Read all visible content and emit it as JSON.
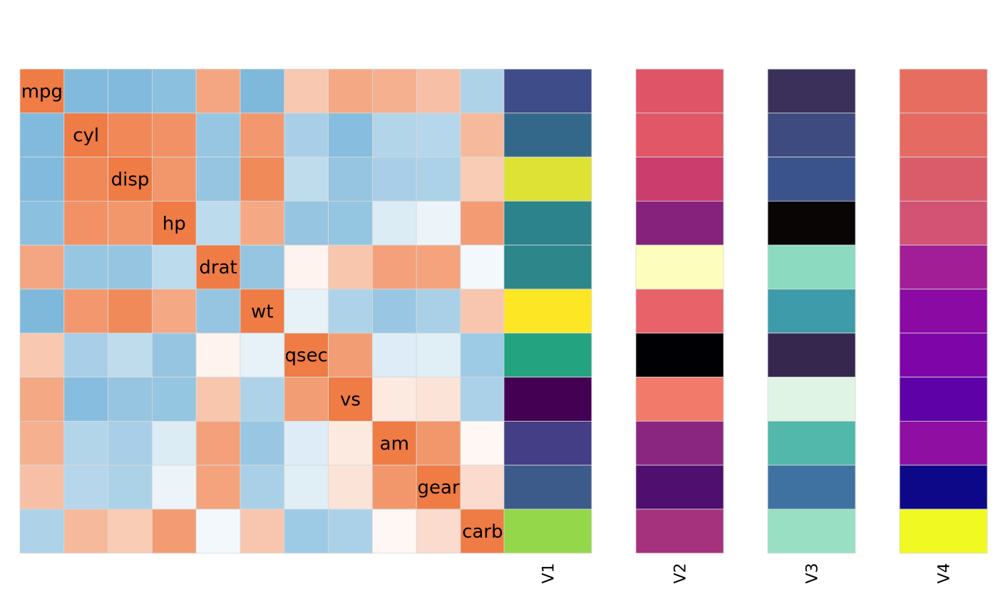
{
  "chart_data": [
    {
      "type": "heatmap",
      "name": "correlation",
      "labels": [
        "mpg",
        "cyl",
        "disp",
        "hp",
        "drat",
        "wt",
        "qsec",
        "vs",
        "am",
        "gear",
        "carb"
      ],
      "matrix": [
        [
          1.0,
          -0.85,
          -0.85,
          -0.78,
          0.68,
          -0.87,
          0.42,
          0.66,
          0.6,
          0.48,
          -0.55
        ],
        [
          -0.85,
          1.0,
          0.9,
          0.83,
          -0.7,
          0.78,
          -0.59,
          -0.81,
          -0.52,
          -0.49,
          0.53
        ],
        [
          -0.85,
          0.9,
          1.0,
          0.79,
          -0.71,
          0.89,
          -0.43,
          -0.71,
          -0.59,
          -0.56,
          0.39
        ],
        [
          -0.78,
          0.83,
          0.79,
          1.0,
          -0.45,
          0.66,
          -0.71,
          -0.72,
          -0.24,
          -0.13,
          0.75
        ],
        [
          0.68,
          -0.7,
          -0.71,
          -0.45,
          1.0,
          -0.71,
          0.09,
          0.44,
          0.71,
          0.7,
          -0.09
        ],
        [
          -0.87,
          0.78,
          0.89,
          0.66,
          -0.71,
          1.0,
          -0.17,
          -0.55,
          -0.69,
          -0.58,
          0.43
        ],
        [
          0.42,
          -0.59,
          -0.43,
          -0.71,
          0.09,
          -0.17,
          1.0,
          0.74,
          -0.23,
          -0.21,
          -0.66
        ],
        [
          0.66,
          -0.81,
          -0.71,
          -0.72,
          0.44,
          -0.55,
          0.74,
          1.0,
          0.17,
          0.21,
          -0.57
        ],
        [
          0.6,
          -0.52,
          -0.59,
          -0.24,
          0.71,
          -0.69,
          -0.23,
          0.17,
          1.0,
          0.79,
          0.06
        ],
        [
          0.48,
          -0.49,
          -0.56,
          -0.13,
          0.7,
          -0.58,
          -0.21,
          0.21,
          0.79,
          1.0,
          0.27
        ],
        [
          -0.55,
          0.53,
          0.39,
          0.75,
          -0.09,
          0.43,
          -0.66,
          -0.57,
          0.06,
          0.27,
          1.0
        ]
      ],
      "colors": {
        "negative": "#6baed6",
        "neutral": "#ffffff",
        "positive": "#ef7b45"
      }
    },
    {
      "type": "heatmap",
      "name": "V1",
      "label": "V1",
      "colors": [
        "#3e4c8a",
        "#33688b",
        "#dde235",
        "#2c838b",
        "#2c868a",
        "#fde725",
        "#24a380",
        "#440154",
        "#433e85",
        "#3c5a8a",
        "#94d74a"
      ]
    },
    {
      "type": "heatmap",
      "name": "V2",
      "label": "V2",
      "colors": [
        "#e05468",
        "#e15768",
        "#cb3d6c",
        "#86217c",
        "#fdfdbd",
        "#e8626a",
        "#000004",
        "#f27a6a",
        "#8a2680",
        "#4e0f6e",
        "#a5327d"
      ]
    },
    {
      "type": "heatmap",
      "name": "V3",
      "label": "V3",
      "colors": [
        "#3a3059",
        "#3d4b80",
        "#3b538c",
        "#0a0505",
        "#8cdbc0",
        "#3e9ba9",
        "#35274d",
        "#e0f4e6",
        "#52b8ab",
        "#3f72a0",
        "#98dfc3"
      ]
    },
    {
      "type": "heatmap",
      "name": "V4",
      "label": "V4",
      "colors": [
        "#e76d61",
        "#e56a62",
        "#da5c6b",
        "#d25373",
        "#a21e96",
        "#8b0aa4",
        "#7e06a8",
        "#5e01a6",
        "#8f0fa3",
        "#0d0887",
        "#f0f921"
      ]
    }
  ]
}
